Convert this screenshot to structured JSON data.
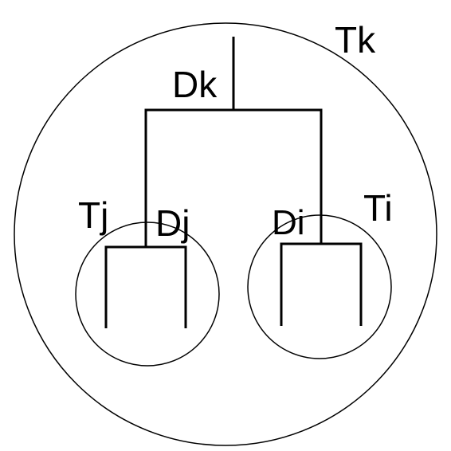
{
  "labels": {
    "tk": "Tk",
    "dk": "Dk",
    "tj": "Tj",
    "dj": "Dj",
    "di": "Di",
    "ti": "Ti"
  },
  "colors": {
    "stroke": "#000000",
    "background": "#ffffff"
  }
}
